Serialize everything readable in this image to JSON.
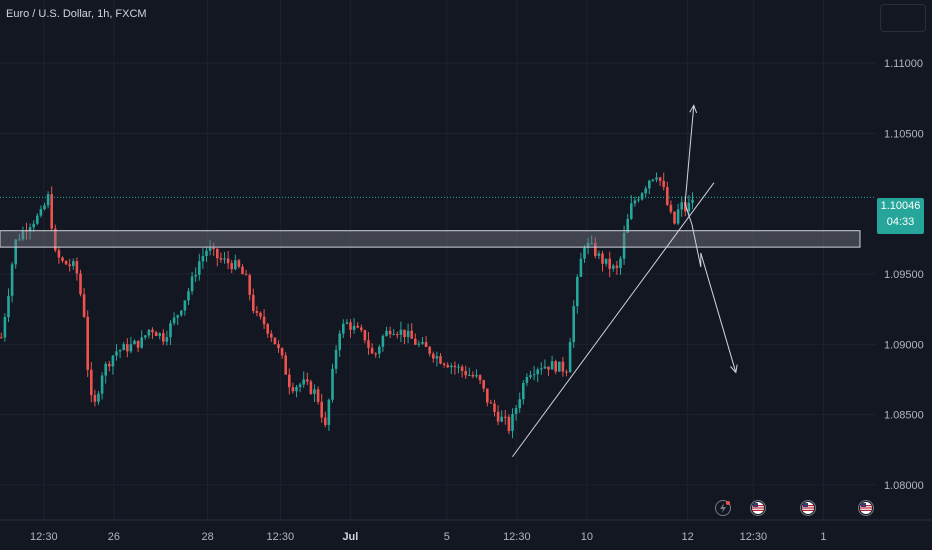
{
  "header": {
    "symbol_title": "Euro / U.S. Dollar, 1h, FXCM"
  },
  "price_tag": {
    "price": "1.10046",
    "countdown": "04:33"
  },
  "event_icons": [
    "lightning-icon",
    "us-flag-icon",
    "us-flag-icon",
    "us-flag-icon"
  ],
  "colors": {
    "background": "#131722",
    "up": "#26a69a",
    "down": "#ef5350",
    "grid": "#1e222d",
    "drawing": "#d1d4dc"
  },
  "chart_data": {
    "type": "candlestick",
    "title": "Euro / U.S. Dollar, 1h, FXCM",
    "y_ticks": [
      "1.11000",
      "1.10500",
      "1.09500",
      "1.09000",
      "1.08500",
      "1.08000"
    ],
    "x_ticks": [
      "12:30",
      "26",
      "28",
      "12:30",
      "Jul",
      "5",
      "12:30",
      "10",
      "12",
      "12:30",
      "1"
    ],
    "ylim": [
      1.0775,
      1.1145
    ],
    "current_price": 1.10046,
    "support_zone": [
      1.0972,
      1.0978
    ],
    "price_path": [
      [
        0,
        1.0905
      ],
      [
        0.01,
        1.0945
      ],
      [
        0.015,
        1.0972
      ],
      [
        0.03,
        1.0985
      ],
      [
        0.045,
        1.0992
      ],
      [
        0.055,
        1.1007
      ],
      [
        0.06,
        1.0965
      ],
      [
        0.07,
        1.0958
      ],
      [
        0.085,
        1.0955
      ],
      [
        0.095,
        1.092
      ],
      [
        0.1,
        1.087
      ],
      [
        0.105,
        1.0852
      ],
      [
        0.115,
        1.088
      ],
      [
        0.13,
        1.0895
      ],
      [
        0.145,
        1.0898
      ],
      [
        0.16,
        1.0902
      ],
      [
        0.17,
        1.0912
      ],
      [
        0.185,
        1.0905
      ],
      [
        0.2,
        1.092
      ],
      [
        0.215,
        1.094
      ],
      [
        0.225,
        1.0958
      ],
      [
        0.235,
        1.0968
      ],
      [
        0.25,
        1.096
      ],
      [
        0.26,
        1.0958
      ],
      [
        0.27,
        1.0955
      ],
      [
        0.28,
        1.0945
      ],
      [
        0.29,
        1.092
      ],
      [
        0.3,
        1.0915
      ],
      [
        0.31,
        1.0905
      ],
      [
        0.32,
        1.089
      ],
      [
        0.33,
        1.087
      ],
      [
        0.345,
        1.0872
      ],
      [
        0.36,
        1.0865
      ],
      [
        0.37,
        1.084
      ],
      [
        0.375,
        1.0865
      ],
      [
        0.385,
        1.091
      ],
      [
        0.395,
        1.0915
      ],
      [
        0.405,
        1.091
      ],
      [
        0.415,
        1.0905
      ],
      [
        0.425,
        1.089
      ],
      [
        0.435,
        1.0905
      ],
      [
        0.445,
        1.0912
      ],
      [
        0.46,
        1.0908
      ],
      [
        0.475,
        1.09
      ],
      [
        0.49,
        1.0895
      ],
      [
        0.5,
        1.089
      ],
      [
        0.515,
        1.0885
      ],
      [
        0.53,
        1.088
      ],
      [
        0.545,
        1.0875
      ],
      [
        0.555,
        1.086
      ],
      [
        0.565,
        1.085
      ],
      [
        0.575,
        1.0845
      ],
      [
        0.58,
        1.084
      ],
      [
        0.59,
        1.086
      ],
      [
        0.6,
        1.088
      ],
      [
        0.615,
        1.0885
      ],
      [
        0.63,
        1.0885
      ],
      [
        0.645,
        1.0882
      ],
      [
        0.655,
        1.0935
      ],
      [
        0.665,
        1.0972
      ],
      [
        0.675,
        1.0968
      ],
      [
        0.685,
        1.096
      ],
      [
        0.695,
        1.0955
      ],
      [
        0.705,
        1.0952
      ],
      [
        0.71,
        1.0975
      ],
      [
        0.72,
        1.1
      ],
      [
        0.73,
        1.1008
      ],
      [
        0.74,
        1.1018
      ],
      [
        0.748,
        1.1022
      ],
      [
        0.755,
        1.1012
      ],
      [
        0.762,
        1.0995
      ],
      [
        0.768,
        1.0985
      ],
      [
        0.775,
        1.1
      ],
      [
        0.782,
        1.0995
      ],
      [
        0.79,
        1.1005
      ]
    ],
    "projection_up": [
      [
        0.782,
        1.1
      ],
      [
        0.792,
        1.107
      ]
    ],
    "projection_down": [
      [
        0.782,
        1.1
      ],
      [
        0.79,
        1.0985
      ],
      [
        0.8,
        1.0955
      ],
      [
        0.8,
        1.0965
      ],
      [
        0.84,
        1.088
      ]
    ],
    "trendline": [
      [
        0.585,
        1.082
      ],
      [
        0.815,
        1.1015
      ]
    ]
  }
}
